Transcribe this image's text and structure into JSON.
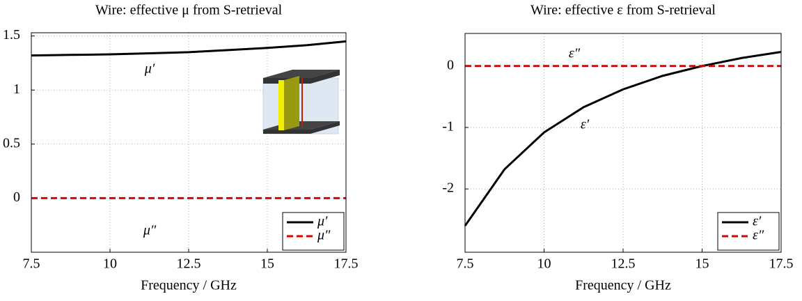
{
  "chart_data": [
    {
      "type": "line",
      "title": "Wire: effective μ from S-retrieval",
      "xlabel": "Frequency / GHz",
      "x": [
        7.5,
        8.75,
        10,
        11.25,
        12.5,
        13.75,
        15,
        16.25,
        17.5
      ],
      "series": [
        {
          "name": "μ′",
          "color": "#000000",
          "linestyle": "solid",
          "values": [
            1.32,
            1.325,
            1.33,
            1.34,
            1.35,
            1.37,
            1.39,
            1.415,
            1.45
          ]
        },
        {
          "name": "μ″",
          "color": "#dd0000",
          "linestyle": "dashed",
          "values": [
            0,
            0,
            0,
            0,
            0,
            0,
            0,
            0,
            0
          ]
        }
      ],
      "annotations": [
        "μ′",
        "μ″"
      ],
      "xlim": [
        7.5,
        17.5
      ],
      "xticks": [
        7.5,
        10,
        12.5,
        15,
        17.5
      ],
      "ylim": [
        -0.5,
        1.53
      ],
      "yticks": [
        0,
        0.5,
        1,
        1.5
      ],
      "grid": true,
      "legend": "lower right"
    },
    {
      "type": "line",
      "title": "Wire: effective ε from S-retrieval",
      "xlabel": "Frequency / GHz",
      "x": [
        7.5,
        8.75,
        10,
        11.25,
        12.5,
        13.75,
        15,
        16.25,
        17.5
      ],
      "series": [
        {
          "name": "ε′",
          "color": "#000000",
          "linestyle": "solid",
          "values": [
            -2.6,
            -1.68,
            -1.08,
            -0.67,
            -0.38,
            -0.16,
            0,
            0.13,
            0.23
          ]
        },
        {
          "name": "ε″",
          "color": "#dd0000",
          "linestyle": "dashed",
          "values": [
            0,
            0,
            0,
            0,
            0,
            0,
            0,
            0,
            0
          ]
        }
      ],
      "annotations": [
        "ε″",
        "ε′"
      ],
      "xlim": [
        7.5,
        17.5
      ],
      "xticks": [
        7.5,
        10,
        12.5,
        15,
        17.5
      ],
      "ylim": [
        -3.03,
        0.53
      ],
      "yticks": [
        -2,
        -1,
        0
      ],
      "grid": true,
      "legend": "lower right"
    }
  ]
}
